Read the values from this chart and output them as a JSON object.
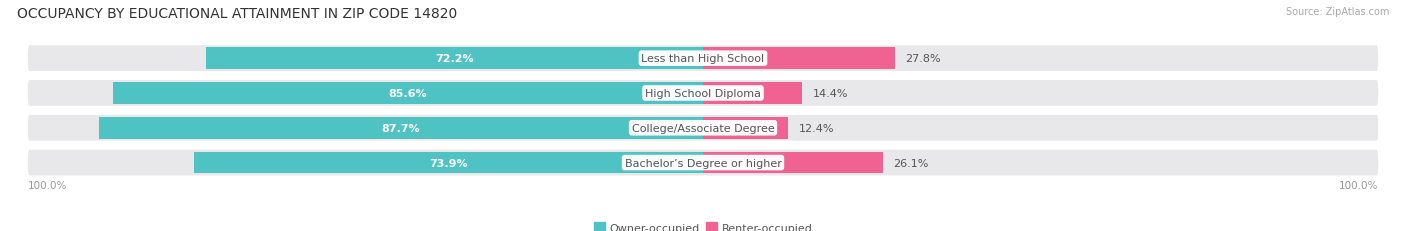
{
  "title": "OCCUPANCY BY EDUCATIONAL ATTAINMENT IN ZIP CODE 14820",
  "source": "Source: ZipAtlas.com",
  "categories": [
    "Less than High School",
    "High School Diploma",
    "College/Associate Degree",
    "Bachelor’s Degree or higher"
  ],
  "owner_values": [
    72.2,
    85.6,
    87.7,
    73.9
  ],
  "renter_values": [
    27.8,
    14.4,
    12.4,
    26.1
  ],
  "owner_color": "#4fc3c3",
  "renter_color": "#f06292",
  "row_bg_color": "#e8e8ea",
  "label_color_owner": "#ffffff",
  "label_color_renter": "#555555",
  "category_label_color": "#555555",
  "axis_label_left": "100.0%",
  "axis_label_right": "100.0%",
  "owner_legend": "Owner-occupied",
  "renter_legend": "Renter-occupied",
  "title_fontsize": 10,
  "bar_fontsize": 8,
  "category_fontsize": 8,
  "legend_fontsize": 8,
  "axis_fontsize": 7.5
}
